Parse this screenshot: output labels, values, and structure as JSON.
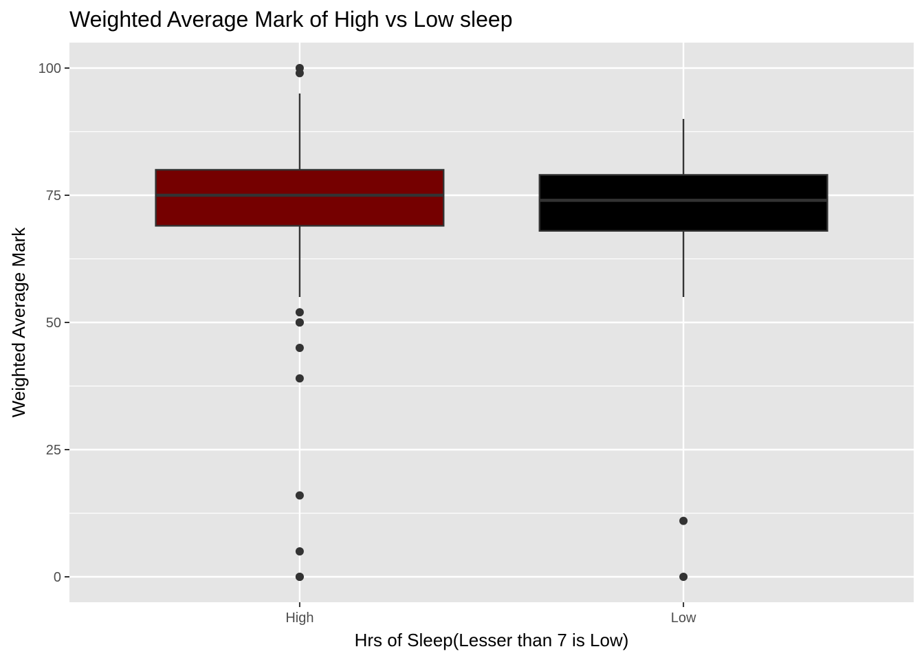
{
  "chart_data": {
    "type": "boxplot",
    "title": "Weighted Average Mark of High vs Low sleep",
    "xlabel": "Hrs of Sleep(Lesser than 7 is Low)",
    "ylabel": "Weighted Average Mark",
    "categories": [
      "High",
      "Low"
    ],
    "ylim": [
      -5,
      105
    ],
    "yticks": [
      0,
      25,
      50,
      75,
      100
    ],
    "ytick_labels": [
      "0",
      "25",
      "50",
      "75",
      "100"
    ],
    "grid": true,
    "boxes": [
      {
        "category": "High",
        "fill": "#750000",
        "whisker_low": 55,
        "q1": 69,
        "median": 75,
        "q3": 80,
        "whisker_high": 95,
        "outliers": [
          100,
          99,
          52,
          50,
          50,
          45,
          39,
          16,
          5,
          0,
          0
        ]
      },
      {
        "category": "Low",
        "fill": "#000000",
        "whisker_low": 55,
        "q1": 68,
        "median": 74,
        "q3": 79,
        "whisker_high": 90,
        "outliers": [
          11,
          0
        ]
      }
    ]
  },
  "colors": {
    "panel_background": "#e5e5e5",
    "grid": "#ffffff",
    "box_outline": "#333333",
    "outlier": "#333333"
  }
}
